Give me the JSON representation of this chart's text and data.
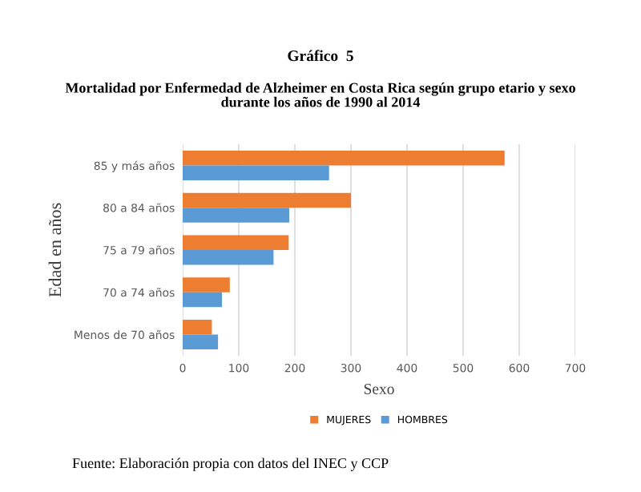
{
  "chart_data": {
    "type": "bar",
    "orientation": "horizontal",
    "title": "Gráfico  5",
    "subtitle": "Mortalidad por Enfermedad de Alzheimer en Costa Rica según grupo etario y sexo\ndurante los años de 1990 al 2014",
    "categories": [
      "85 y más años",
      "80 a 84 años",
      "75 a 79 años",
      "70 a 74 años",
      "Menos de 70 años"
    ],
    "series": [
      {
        "name": "MUJERES",
        "color": "#ed7d31",
        "values": [
          574,
          300,
          189,
          84,
          52
        ]
      },
      {
        "name": "HOMBRES",
        "color": "#5b9bd5",
        "values": [
          261,
          190,
          162,
          70,
          63
        ]
      }
    ],
    "xlim": [
      0,
      700
    ],
    "xticks": [
      0,
      100,
      200,
      300,
      400,
      500,
      600,
      700
    ],
    "xlabel": "Sexo",
    "ylabel": "Edad en años",
    "grid": "x",
    "legend": "bottom",
    "annotations": [
      "Fuente: Elaboración propia con datos del INEC y CCP"
    ]
  }
}
